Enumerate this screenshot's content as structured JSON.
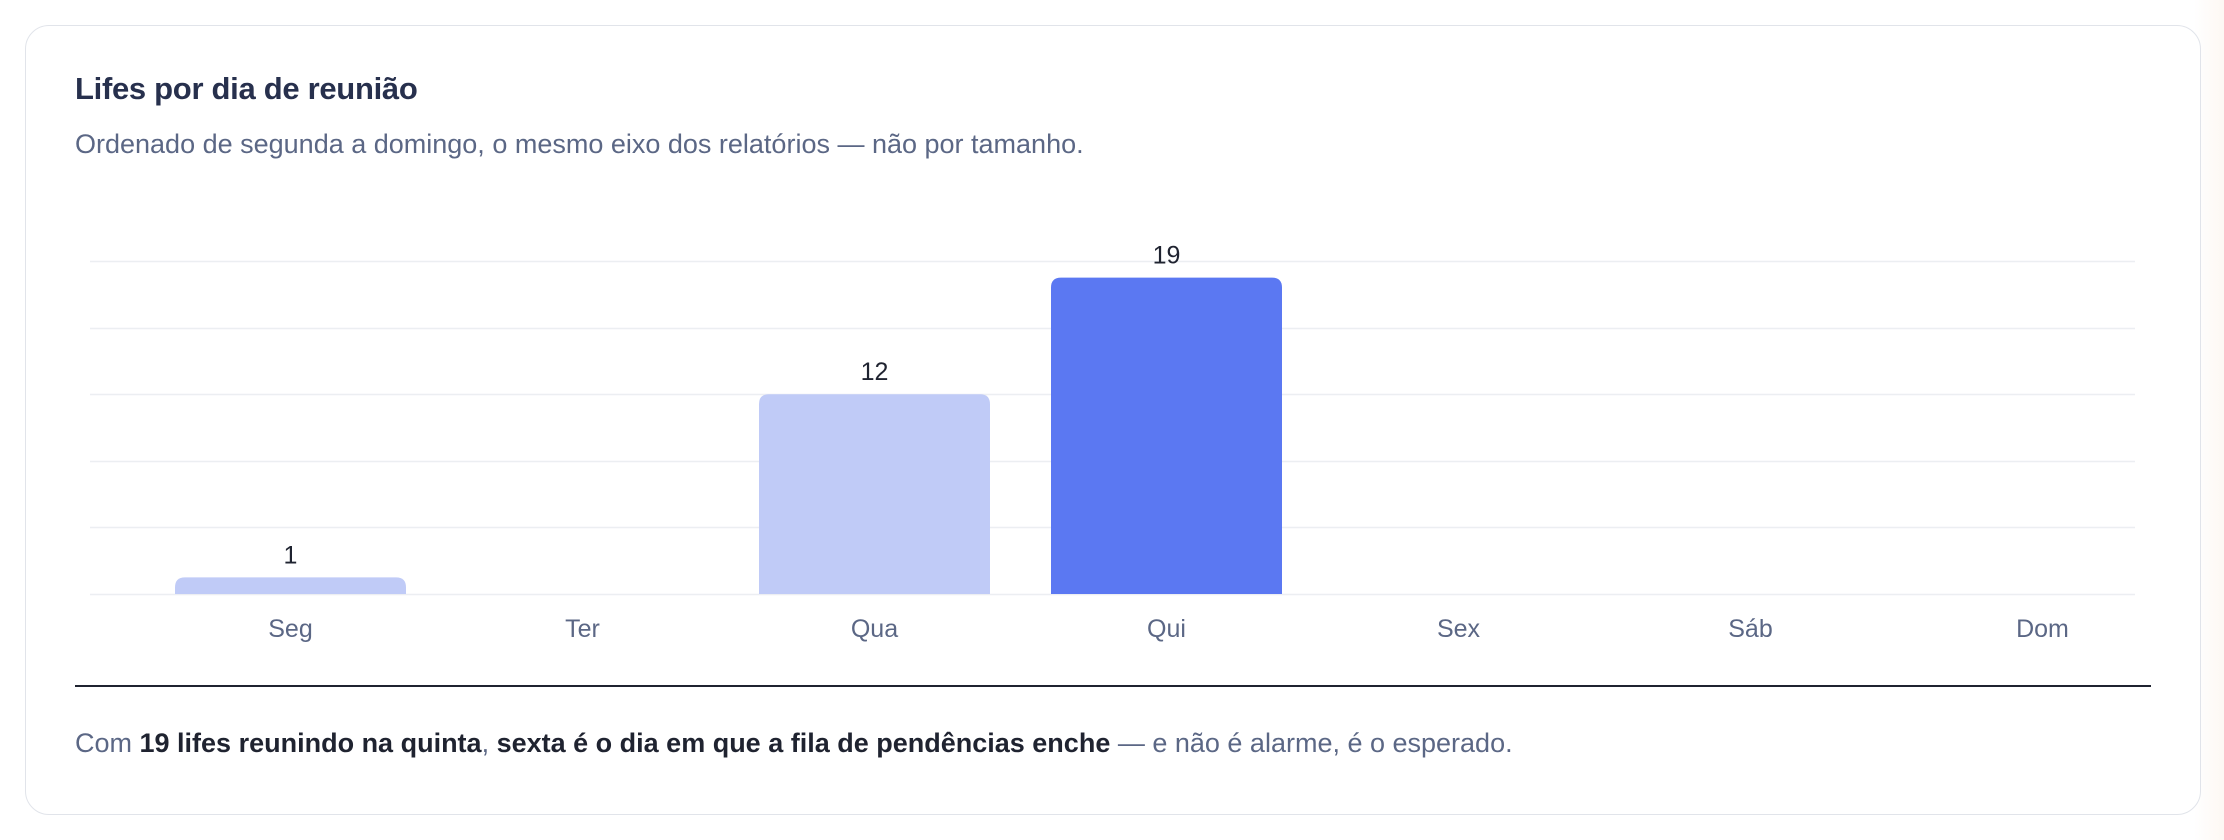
{
  "card": {
    "title": "Lifes por dia de reunião",
    "subtitle": "Ordenado de segunda a domingo, o mesmo eixo dos relatórios — não por tamanho."
  },
  "chart_data": {
    "type": "bar",
    "categories": [
      "Seg",
      "Ter",
      "Qua",
      "Qui",
      "Sex",
      "Sáb",
      "Dom"
    ],
    "values": [
      1,
      0,
      12,
      19,
      0,
      0,
      0
    ],
    "data_labels": [
      "1",
      "",
      "12",
      "19",
      "",
      "",
      ""
    ],
    "ylim": [
      0,
      20
    ],
    "grid": true,
    "highlight_category": "Qui",
    "colors": {
      "bar": "#c0cbf7",
      "highlight": "#5b78f2",
      "grid": "#eceef2",
      "tick_label": "#5b6785",
      "data_label": "#1f2330"
    }
  },
  "footer": {
    "prefix": "Com ",
    "bold1": "19 lifes reunindo na quinta",
    "comma": ", ",
    "bold2": "sexta é o dia em que a fila de pendências enche",
    "suffix": " — e não é alarme, é o esperado."
  }
}
